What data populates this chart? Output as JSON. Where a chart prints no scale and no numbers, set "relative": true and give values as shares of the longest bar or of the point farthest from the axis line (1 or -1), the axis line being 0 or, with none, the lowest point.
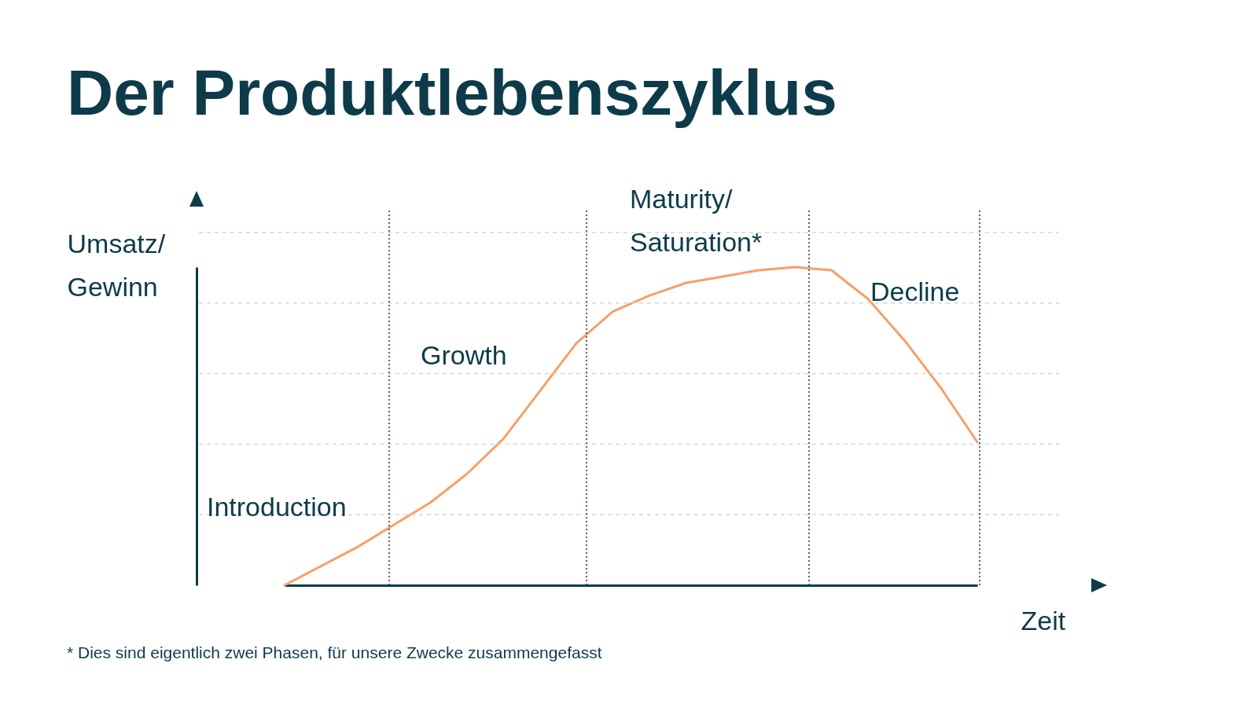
{
  "chart_data": {
    "type": "line",
    "title": "Der Produktlebenszyklus",
    "xlabel": "Zeit",
    "ylabel": "Umsatz/\nGewinn",
    "relative": true,
    "categories": [
      null,
      null,
      null,
      null,
      null,
      null,
      null,
      null,
      null,
      null,
      null,
      null,
      null,
      null,
      null,
      null,
      null,
      null,
      null,
      null
    ],
    "series": [
      {
        "color": "#f7a066",
        "values": [
          0,
          0.06,
          0.12,
          0.19,
          0.26,
          0.35,
          0.46,
          0.61,
          0.76,
          0.86,
          0.91,
          0.95,
          0.97,
          0.99,
          1,
          0.99,
          0.9,
          0.77,
          0.62,
          0.45
        ]
      }
    ],
    "grid": "y",
    "line_style": "solid",
    "annotations": [
      "Introduction",
      "Growth",
      "Maturity/\nSaturation*",
      "Decline",
      "* Dies sind eigentlich zwei Phasen, für unsere Zwecke zusammengefasst"
    ]
  }
}
